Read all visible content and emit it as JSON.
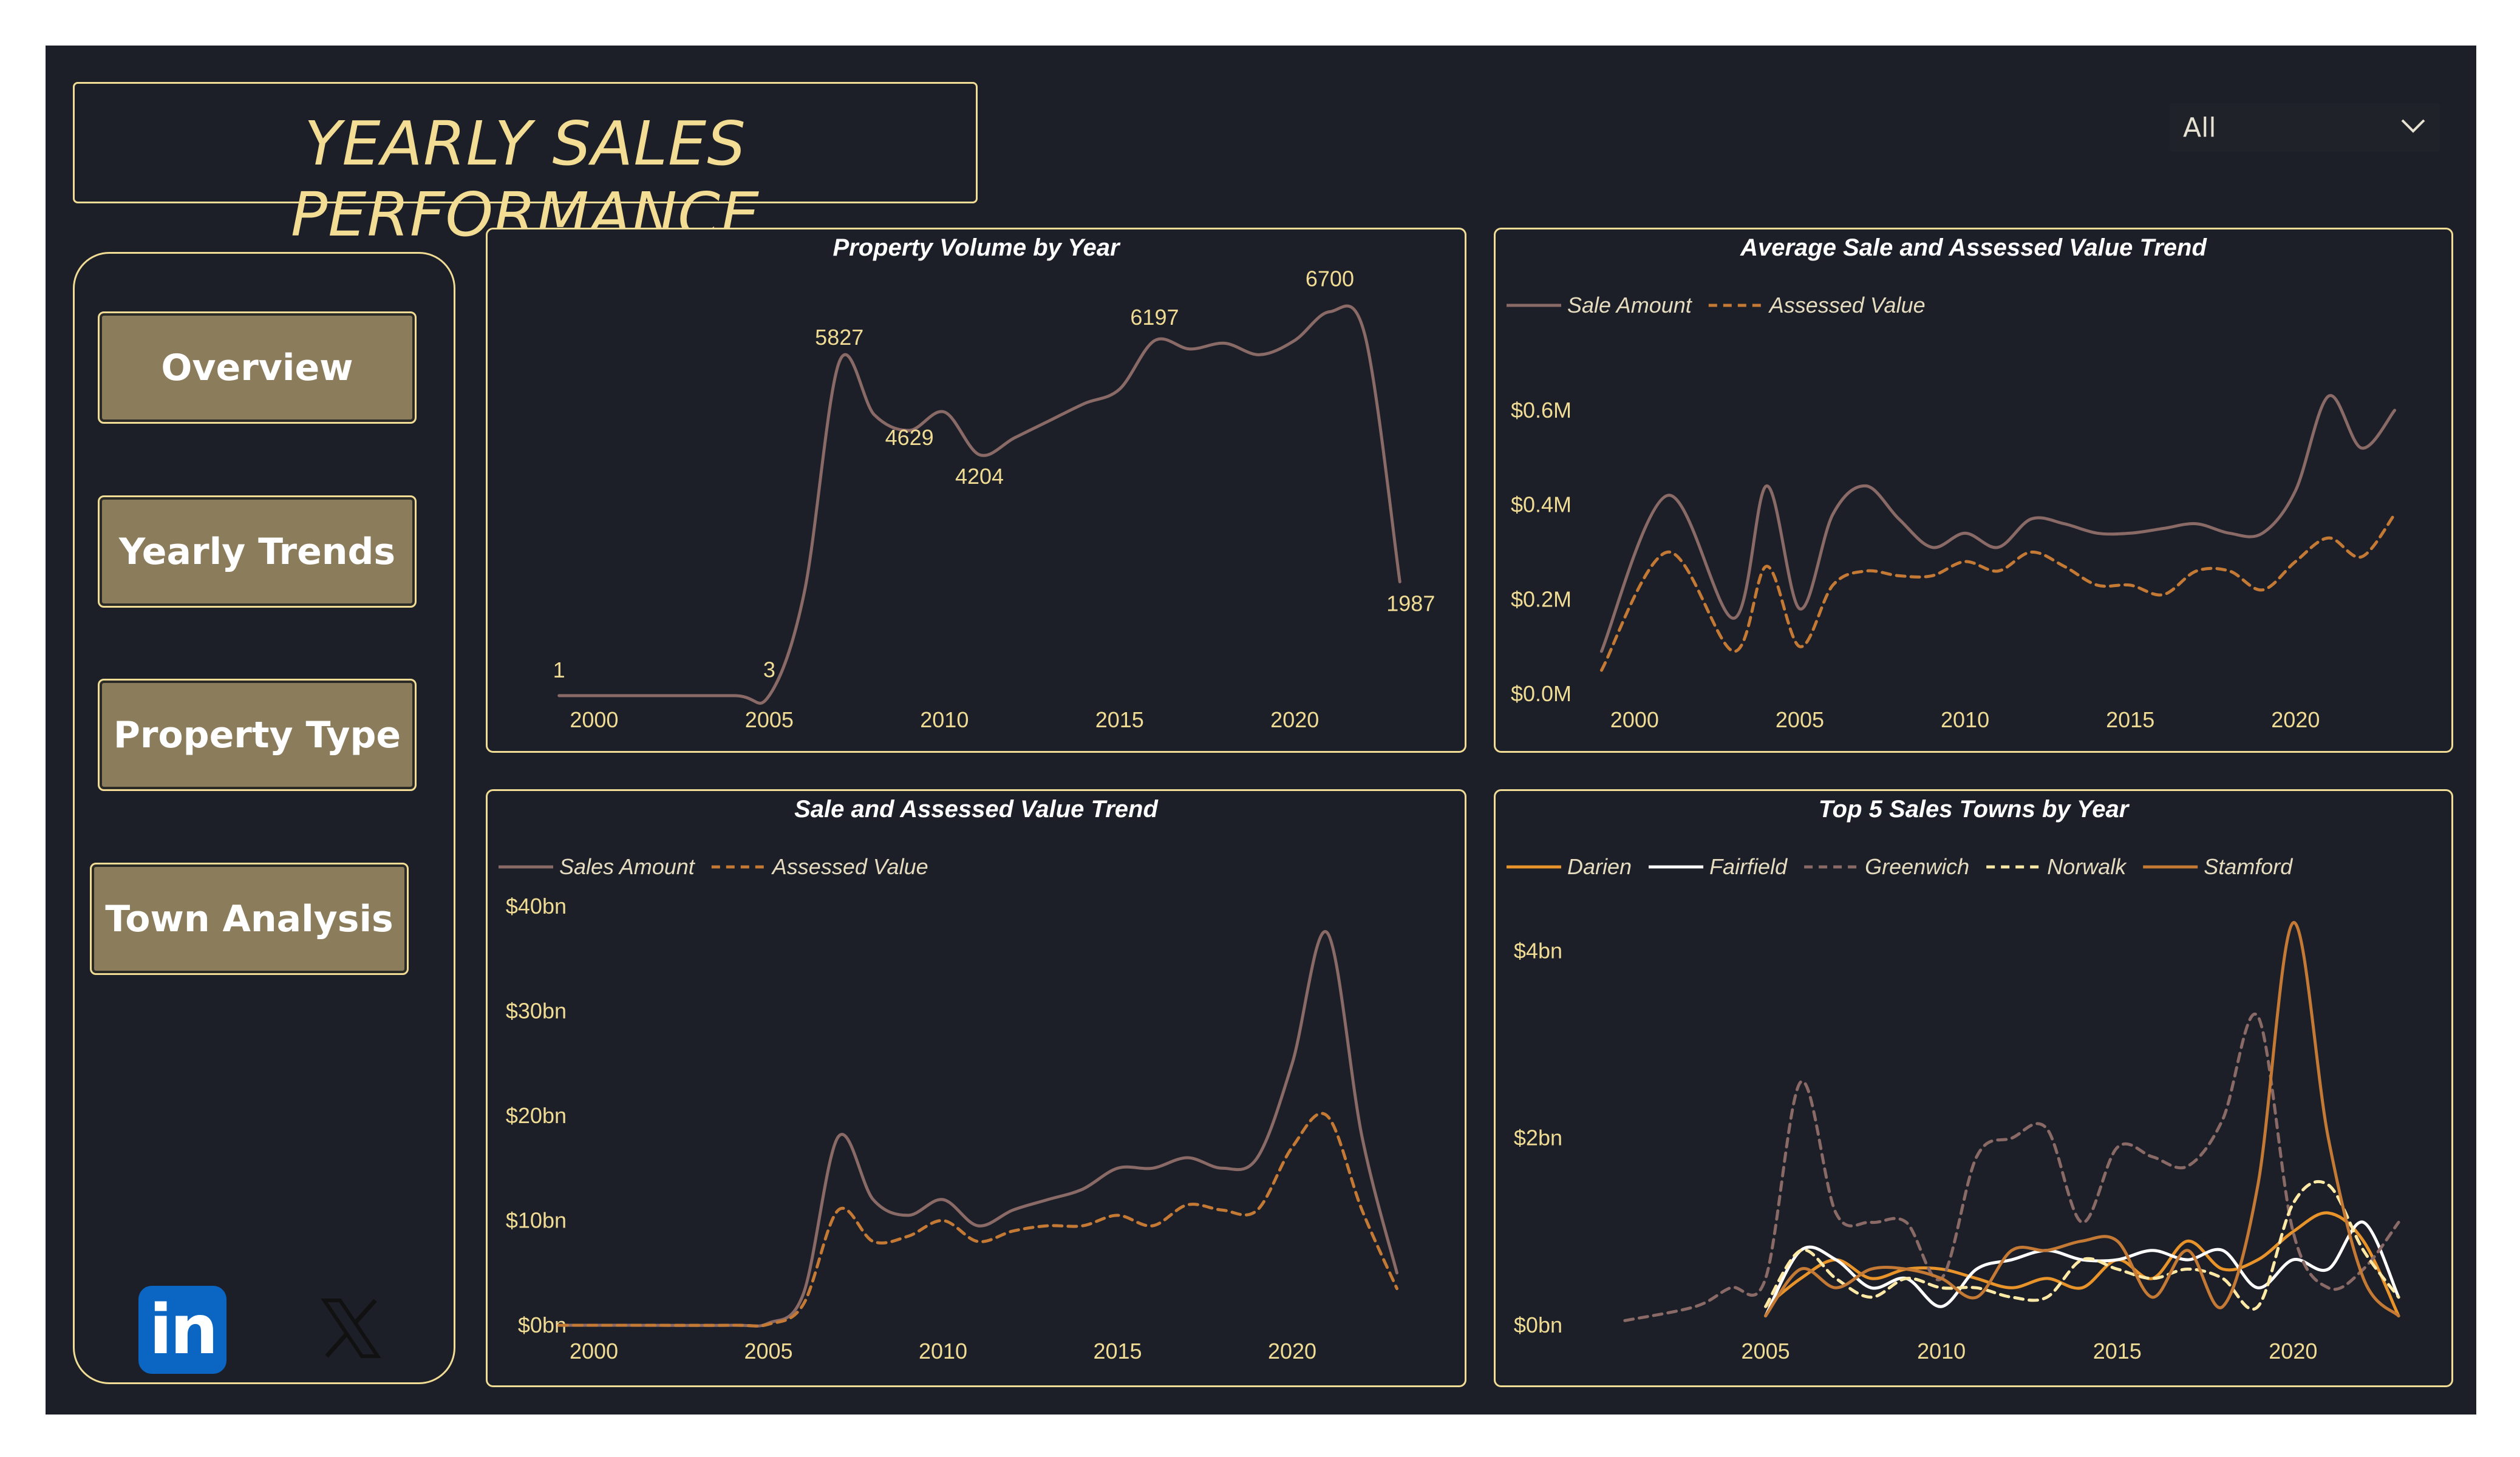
{
  "header": {
    "title": "YEARLY SALES PERFORMANCE",
    "filter_value": "All"
  },
  "nav": [
    {
      "label": "Overview"
    },
    {
      "label": "Yearly Trends"
    },
    {
      "label": "Property Type"
    },
    {
      "label": "Town Analysis"
    }
  ],
  "social": {
    "linkedin": "linkedin-icon",
    "x": "x-icon"
  },
  "colors": {
    "background": "#1c1f27",
    "accent": "#f0dc94",
    "nav_button": "#8b7d5b",
    "sale_line": "#8a6a66",
    "assessed_line": "#c47a35"
  },
  "chart_data": [
    {
      "type": "line",
      "title": "Property Volume by Year",
      "x": [
        1999,
        2001,
        2004,
        2005,
        2006,
        2007,
        2008,
        2009,
        2010,
        2011,
        2012,
        2013,
        2014,
        2015,
        2016,
        2017,
        2018,
        2019,
        2020,
        2021,
        2022,
        2023
      ],
      "series": [
        {
          "color": "#8a6a66",
          "values": [
            1,
            1,
            1,
            3,
            1800,
            5827,
            4900,
            4629,
            4950,
            4204,
            4500,
            4800,
            5100,
            5350,
            6197,
            6050,
            6150,
            5950,
            6200,
            6700,
            6300,
            1987
          ]
        }
      ],
      "data_labels": [
        {
          "x": 1999,
          "y": 1,
          "text": "1"
        },
        {
          "x": 2005,
          "y": 3,
          "text": "3"
        },
        {
          "x": 2007,
          "y": 5827,
          "text": "5827"
        },
        {
          "x": 2009,
          "y": 4629,
          "text": "4629"
        },
        {
          "x": 2011,
          "y": 4204,
          "text": "4204"
        },
        {
          "x": 2016,
          "y": 6197,
          "text": "6197"
        },
        {
          "x": 2021,
          "y": 6700,
          "text": "6700"
        },
        {
          "x": 2023,
          "y": 1987,
          "text": "1987"
        }
      ],
      "xticks": [
        "2000",
        "2005",
        "2010",
        "2015",
        "2020"
      ],
      "xlim": [
        1998,
        2024
      ],
      "ylim": [
        0,
        7500
      ]
    },
    {
      "type": "line",
      "title": "Average Sale and Assessed Value Trend",
      "x": [
        1999,
        2001,
        2003,
        2004,
        2005,
        2006,
        2007,
        2008,
        2009,
        2010,
        2011,
        2012,
        2013,
        2014,
        2015,
        2016,
        2017,
        2018,
        2019,
        2020,
        2021,
        2022,
        2023
      ],
      "series": [
        {
          "name": "Sale Amount",
          "color": "#8a6a66",
          "dash": false,
          "values": [
            0.09,
            0.42,
            0.16,
            0.44,
            0.18,
            0.38,
            0.44,
            0.37,
            0.31,
            0.34,
            0.31,
            0.37,
            0.36,
            0.34,
            0.34,
            0.35,
            0.36,
            0.34,
            0.34,
            0.43,
            0.63,
            0.52,
            0.6
          ]
        },
        {
          "name": "Assessed Value",
          "color": "#c47a35",
          "dash": true,
          "values": [
            0.05,
            0.3,
            0.09,
            0.27,
            0.1,
            0.23,
            0.26,
            0.25,
            0.25,
            0.28,
            0.26,
            0.3,
            0.27,
            0.23,
            0.23,
            0.21,
            0.26,
            0.26,
            0.22,
            0.28,
            0.33,
            0.29,
            0.38
          ]
        }
      ],
      "xticks": [
        "2000",
        "2005",
        "2010",
        "2015",
        "2020"
      ],
      "yticks": [
        "$0.0M",
        "$0.2M",
        "$0.4M",
        "$0.6M"
      ],
      "xlim": [
        1998,
        2024
      ],
      "ylim": [
        0,
        0.7
      ],
      "legend": "top-left"
    },
    {
      "type": "line",
      "title": "Sale and Assessed Value Trend",
      "x": [
        1999,
        2001,
        2004,
        2005,
        2006,
        2007,
        2008,
        2009,
        2010,
        2011,
        2012,
        2013,
        2014,
        2015,
        2016,
        2017,
        2018,
        2019,
        2020,
        2021,
        2022,
        2023
      ],
      "series": [
        {
          "name": "Sales Amount",
          "color": "#8a6a66",
          "dash": false,
          "values": [
            0,
            0,
            0,
            0.2,
            3,
            18,
            12,
            10.5,
            12,
            9.5,
            11,
            12,
            13,
            15,
            15,
            16,
            15,
            16,
            25,
            37.5,
            18,
            5
          ]
        },
        {
          "name": "Assessed Value",
          "color": "#c47a35",
          "dash": true,
          "values": [
            0,
            0,
            0,
            0.1,
            2,
            11,
            8,
            8.5,
            10,
            8,
            9,
            9.5,
            9.5,
            10.5,
            9.5,
            11.5,
            11,
            11,
            17,
            20,
            11,
            3.5
          ]
        }
      ],
      "xticks": [
        "2000",
        "2005",
        "2010",
        "2015",
        "2020"
      ],
      "yticks": [
        "$0bn",
        "$10bn",
        "$20bn",
        "$30bn",
        "$40bn"
      ],
      "xlim": [
        1998,
        2024
      ],
      "ylim": [
        0,
        40
      ],
      "legend": "top-left"
    },
    {
      "type": "line",
      "title": "Top 5 Sales Towns by Year",
      "x": [
        2001,
        2003,
        2004,
        2005,
        2006,
        2007,
        2008,
        2009,
        2010,
        2011,
        2012,
        2013,
        2014,
        2015,
        2016,
        2017,
        2018,
        2019,
        2020,
        2021,
        2022,
        2023
      ],
      "series": [
        {
          "name": "Darien",
          "color": "#e8942a",
          "dash": false,
          "values": [
            null,
            null,
            null,
            0.2,
            0.5,
            0.7,
            0.5,
            0.6,
            0.6,
            0.5,
            0.4,
            0.5,
            0.4,
            0.7,
            0.5,
            0.9,
            0.6,
            0.7,
            1.0,
            1.2,
            0.9,
            0.1
          ]
        },
        {
          "name": "Fairfield",
          "color": "#ffffff",
          "dash": false,
          "values": [
            null,
            null,
            null,
            0.1,
            0.8,
            0.7,
            0.4,
            0.5,
            0.2,
            0.6,
            0.7,
            0.8,
            0.7,
            0.7,
            0.8,
            0.7,
            0.8,
            0.4,
            0.7,
            0.6,
            1.1,
            0.3
          ]
        },
        {
          "name": "Greenwich",
          "color": "#8a6a66",
          "dash": true,
          "values": [
            0.05,
            0.2,
            0.4,
            0.5,
            2.6,
            1.2,
            1.1,
            1.1,
            0.5,
            1.8,
            2.0,
            2.1,
            1.1,
            1.9,
            1.8,
            1.7,
            2.2,
            3.3,
            1.0,
            0.4,
            0.6,
            1.1
          ]
        },
        {
          "name": "Norwalk",
          "color": "#ffe9a6",
          "dash": true,
          "values": [
            null,
            null,
            null,
            0.2,
            0.8,
            0.5,
            0.3,
            0.5,
            0.4,
            0.4,
            0.3,
            0.3,
            0.7,
            0.6,
            0.5,
            0.6,
            0.5,
            0.2,
            1.3,
            1.5,
            0.8,
            0.3
          ]
        },
        {
          "name": "Stamford",
          "color": "#c47a35",
          "dash": false,
          "values": [
            null,
            null,
            null,
            0.1,
            0.6,
            0.4,
            0.6,
            0.6,
            0.5,
            0.3,
            0.8,
            0.8,
            0.9,
            0.9,
            0.3,
            0.8,
            0.2,
            1.5,
            4.3,
            2.0,
            0.5,
            0.1
          ]
        }
      ],
      "xticks": [
        "2005",
        "2010",
        "2015",
        "2020"
      ],
      "yticks": [
        "$0bn",
        "$2bn",
        "$4bn"
      ],
      "xlim": [
        2000,
        2024
      ],
      "ylim": [
        0,
        4.8
      ],
      "legend": "top-left"
    }
  ]
}
